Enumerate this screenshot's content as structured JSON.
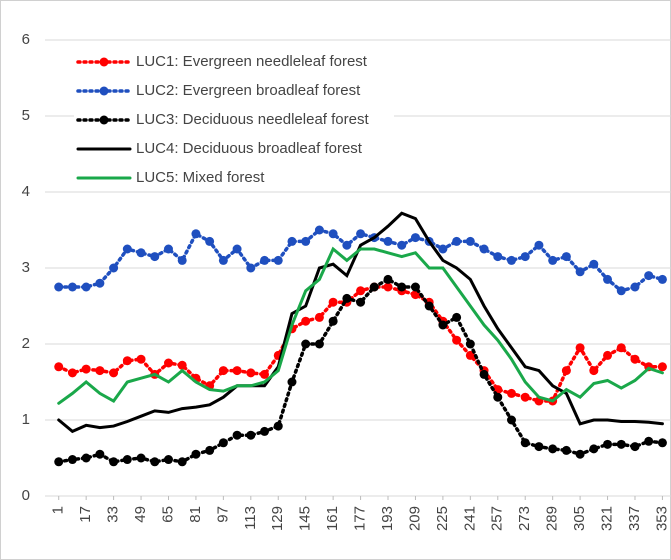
{
  "chart_data": {
    "type": "line",
    "x": [
      1,
      9,
      17,
      25,
      33,
      41,
      49,
      57,
      65,
      73,
      81,
      89,
      97,
      105,
      113,
      121,
      129,
      137,
      145,
      153,
      161,
      169,
      177,
      185,
      193,
      201,
      209,
      217,
      225,
      233,
      241,
      249,
      257,
      265,
      273,
      281,
      289,
      297,
      305,
      313,
      321,
      329,
      337,
      345,
      353
    ],
    "xlim": [
      -7,
      358
    ],
    "xticks": [
      1,
      17,
      33,
      49,
      65,
      81,
      97,
      113,
      129,
      145,
      161,
      177,
      193,
      209,
      225,
      241,
      257,
      273,
      289,
      305,
      321,
      337,
      353
    ],
    "ylim": [
      0,
      6
    ],
    "yticks": [
      0,
      1,
      2,
      3,
      4,
      5,
      6
    ],
    "grid": true,
    "legend": "upper left",
    "series": [
      {
        "name": "LUC1: Evergreen needleleaf forest",
        "color": "#ff0000",
        "dash": "dotted",
        "marker": true,
        "values": [
          1.7,
          1.62,
          1.67,
          1.65,
          1.62,
          1.78,
          1.8,
          1.6,
          1.75,
          1.72,
          1.55,
          1.45,
          1.65,
          1.65,
          1.62,
          1.6,
          1.85,
          2.2,
          2.3,
          2.35,
          2.55,
          2.55,
          2.7,
          2.75,
          2.75,
          2.7,
          2.65,
          2.55,
          2.3,
          2.05,
          1.85,
          1.65,
          1.4,
          1.35,
          1.3,
          1.25,
          1.25,
          1.65,
          1.95,
          1.65,
          1.85,
          1.95,
          1.8,
          1.7,
          1.7
        ]
      },
      {
        "name": "LUC2: Evergreen broadleaf forest",
        "color": "#1f4fbf",
        "dash": "dotted",
        "marker": true,
        "values": [
          2.75,
          2.75,
          2.75,
          2.8,
          3.0,
          3.25,
          3.2,
          3.15,
          3.25,
          3.1,
          3.45,
          3.35,
          3.1,
          3.25,
          3.0,
          3.1,
          3.1,
          3.35,
          3.35,
          3.5,
          3.45,
          3.3,
          3.45,
          3.4,
          3.35,
          3.3,
          3.4,
          3.35,
          3.25,
          3.35,
          3.35,
          3.25,
          3.15,
          3.1,
          3.15,
          3.3,
          3.1,
          3.15,
          2.95,
          3.05,
          2.85,
          2.7,
          2.75,
          2.9,
          2.85
        ]
      },
      {
        "name": "LUC3: Deciduous needleleaf forest",
        "color": "#000000",
        "dash": "dotted",
        "marker": true,
        "values": [
          0.45,
          0.48,
          0.5,
          0.55,
          0.45,
          0.48,
          0.5,
          0.45,
          0.48,
          0.45,
          0.55,
          0.6,
          0.7,
          0.8,
          0.8,
          0.85,
          0.92,
          1.5,
          2.0,
          2.0,
          2.3,
          2.6,
          2.55,
          2.75,
          2.85,
          2.75,
          2.75,
          2.5,
          2.25,
          2.35,
          2.0,
          1.6,
          1.3,
          1.0,
          0.7,
          0.65,
          0.62,
          0.6,
          0.55,
          0.62,
          0.68,
          0.68,
          0.65,
          0.72,
          0.7
        ]
      },
      {
        "name": "LUC4: Deciduous broadleaf forest",
        "color": "#000000",
        "dash": "solid",
        "marker": false,
        "values": [
          1.0,
          0.85,
          0.93,
          0.9,
          0.92,
          0.98,
          1.05,
          1.12,
          1.1,
          1.15,
          1.17,
          1.2,
          1.3,
          1.45,
          1.45,
          1.45,
          1.7,
          2.4,
          2.5,
          3.0,
          3.05,
          2.9,
          3.3,
          3.4,
          3.55,
          3.72,
          3.65,
          3.35,
          3.1,
          3.0,
          2.85,
          2.5,
          2.2,
          1.95,
          1.7,
          1.65,
          1.45,
          1.35,
          0.95,
          1.0,
          1.0,
          0.98,
          0.98,
          0.97,
          0.95
        ]
      },
      {
        "name": "LUC5: Mixed forest",
        "color": "#1aa84a",
        "dash": "solid",
        "marker": false,
        "values": [
          1.22,
          1.35,
          1.5,
          1.35,
          1.25,
          1.5,
          1.55,
          1.6,
          1.5,
          1.65,
          1.5,
          1.4,
          1.38,
          1.45,
          1.45,
          1.5,
          1.65,
          2.25,
          2.7,
          2.85,
          3.25,
          3.1,
          3.25,
          3.25,
          3.2,
          3.15,
          3.2,
          3.0,
          3.0,
          2.75,
          2.5,
          2.25,
          2.05,
          1.8,
          1.5,
          1.3,
          1.25,
          1.4,
          1.3,
          1.48,
          1.52,
          1.42,
          1.52,
          1.68,
          1.62
        ]
      }
    ]
  }
}
